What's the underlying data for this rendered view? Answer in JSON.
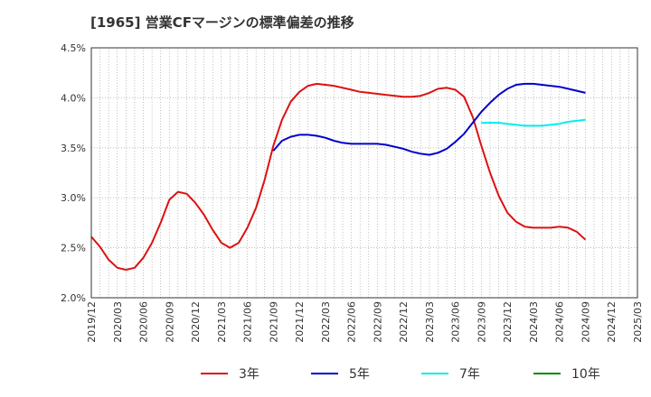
{
  "chart_data": {
    "type": "line",
    "title": "[1965]  営業CFマージンの標準偏差の推移",
    "xlabel": "",
    "ylabel": "",
    "ylim": [
      0.02,
      0.045
    ],
    "yticks": [
      "2.0%",
      "2.5%",
      "3.0%",
      "3.5%",
      "4.0%",
      "4.5%"
    ],
    "x_ticks": [
      "2019/12",
      "2020/03",
      "2020/06",
      "2020/09",
      "2020/12",
      "2021/03",
      "2021/06",
      "2021/09",
      "2021/12",
      "2022/03",
      "2022/06",
      "2022/09",
      "2022/12",
      "2023/03",
      "2023/06",
      "2023/09",
      "2023/12",
      "2024/03",
      "2024/06",
      "2024/09",
      "2024/12",
      "2025/03"
    ],
    "grid": true,
    "legend_position": "bottom",
    "series": [
      {
        "name": "3年",
        "color": "#dd1111",
        "x": [
          "2019/12",
          "2020/01",
          "2020/02",
          "2020/03",
          "2020/04",
          "2020/05",
          "2020/06",
          "2020/07",
          "2020/08",
          "2020/09",
          "2020/10",
          "2020/11",
          "2020/12",
          "2021/01",
          "2021/02",
          "2021/03",
          "2021/04",
          "2021/05",
          "2021/06",
          "2021/07",
          "2021/08",
          "2021/09",
          "2021/10",
          "2021/11",
          "2021/12",
          "2022/01",
          "2022/02",
          "2022/03",
          "2022/04",
          "2022/05",
          "2022/06",
          "2022/07",
          "2022/08",
          "2022/09",
          "2022/10",
          "2022/11",
          "2022/12",
          "2023/01",
          "2023/02",
          "2023/03",
          "2023/04",
          "2023/05",
          "2023/06",
          "2023/07",
          "2023/08",
          "2023/09",
          "2023/10",
          "2023/11",
          "2023/12",
          "2024/01",
          "2024/02",
          "2024/03",
          "2024/04",
          "2024/05",
          "2024/06",
          "2024/07",
          "2024/08",
          "2024/09"
        ],
        "values": [
          0.0261,
          0.0251,
          0.0238,
          0.023,
          0.0228,
          0.023,
          0.024,
          0.0255,
          0.0275,
          0.0298,
          0.0306,
          0.0304,
          0.0295,
          0.0283,
          0.0268,
          0.0255,
          0.025,
          0.0255,
          0.027,
          0.029,
          0.0318,
          0.0352,
          0.0378,
          0.0396,
          0.0406,
          0.0412,
          0.0414,
          0.0413,
          0.0412,
          0.041,
          0.0408,
          0.0406,
          0.0405,
          0.0404,
          0.0403,
          0.0402,
          0.0401,
          0.0401,
          0.0402,
          0.0405,
          0.0409,
          0.041,
          0.0408,
          0.0401,
          0.0381,
          0.0352,
          0.0325,
          0.0302,
          0.0285,
          0.0276,
          0.0271,
          0.027,
          0.027,
          0.027,
          0.0271,
          0.027,
          0.0266,
          0.0258
        ]
      },
      {
        "name": "5年",
        "color": "#0000cc",
        "x": [
          "2021/09",
          "2021/10",
          "2021/11",
          "2021/12",
          "2022/01",
          "2022/02",
          "2022/03",
          "2022/04",
          "2022/05",
          "2022/06",
          "2022/07",
          "2022/08",
          "2022/09",
          "2022/10",
          "2022/11",
          "2022/12",
          "2023/01",
          "2023/02",
          "2023/03",
          "2023/04",
          "2023/05",
          "2023/06",
          "2023/07",
          "2023/08",
          "2023/09",
          "2023/10",
          "2023/11",
          "2023/12",
          "2024/01",
          "2024/02",
          "2024/03",
          "2024/04",
          "2024/05",
          "2024/06",
          "2024/07",
          "2024/08",
          "2024/09"
        ],
        "values": [
          0.0347,
          0.0357,
          0.0361,
          0.0363,
          0.0363,
          0.0362,
          0.036,
          0.0357,
          0.0355,
          0.0354,
          0.0354,
          0.0354,
          0.0354,
          0.0353,
          0.0351,
          0.0349,
          0.0346,
          0.0344,
          0.0343,
          0.0345,
          0.0349,
          0.0356,
          0.0364,
          0.0375,
          0.0386,
          0.0395,
          0.0403,
          0.0409,
          0.0413,
          0.0414,
          0.0414,
          0.0413,
          0.0412,
          0.0411,
          0.0409,
          0.0407,
          0.0405
        ]
      },
      {
        "name": "7年",
        "color": "#00eeee",
        "x": [
          "2023/09",
          "2023/10",
          "2023/11",
          "2023/12",
          "2024/01",
          "2024/02",
          "2024/03",
          "2024/04",
          "2024/05",
          "2024/06",
          "2024/07",
          "2024/08",
          "2024/09"
        ],
        "values": [
          0.0375,
          0.0375,
          0.0375,
          0.0374,
          0.0373,
          0.0372,
          0.0372,
          0.0372,
          0.0373,
          0.0374,
          0.0376,
          0.0377,
          0.0378
        ]
      },
      {
        "name": "10年",
        "color": "#008800",
        "x": [],
        "values": []
      }
    ]
  }
}
